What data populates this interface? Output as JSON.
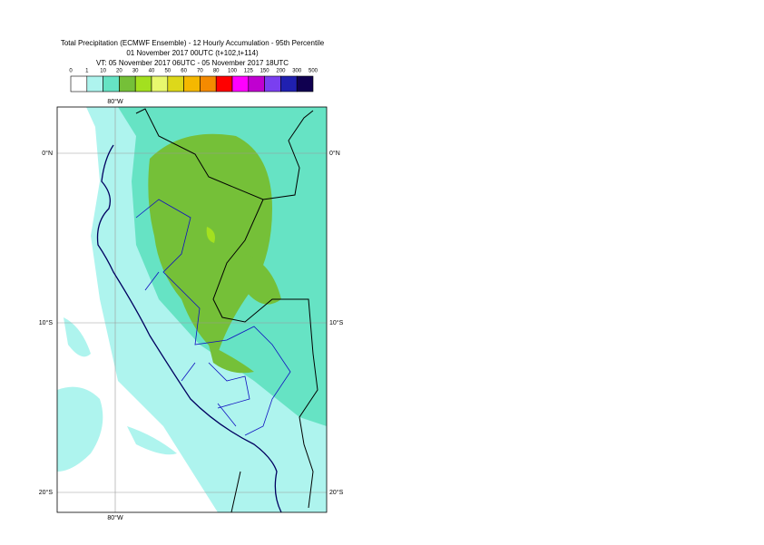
{
  "header": {
    "title": "Total Precipitation (ECMWF Ensemble) - 12 Hourly Accumulation - 95th Percentile",
    "base_time": "01 November 2017 00UTC (t+102,t+114)",
    "valid_time": "VT: 05 November 2017 06UTC - 05 November 2017 18UTC"
  },
  "legend": {
    "labels": [
      0,
      1,
      10,
      20,
      30,
      40,
      50,
      60,
      70,
      80,
      100,
      125,
      150,
      200,
      300,
      500
    ],
    "colors": [
      "#ffffff",
      "#aef4ee",
      "#66e3c4",
      "#75c038",
      "#a3e01f",
      "#e8f86e",
      "#ddd81a",
      "#f5b800",
      "#f48a00",
      "#ff0000",
      "#ff00ff",
      "#c000d0",
      "#7a3ff0",
      "#2020b0",
      "#100050"
    ]
  },
  "map": {
    "lon_label": "80°W",
    "lat_labels": [
      "0°N",
      "10°S",
      "20°S"
    ]
  }
}
